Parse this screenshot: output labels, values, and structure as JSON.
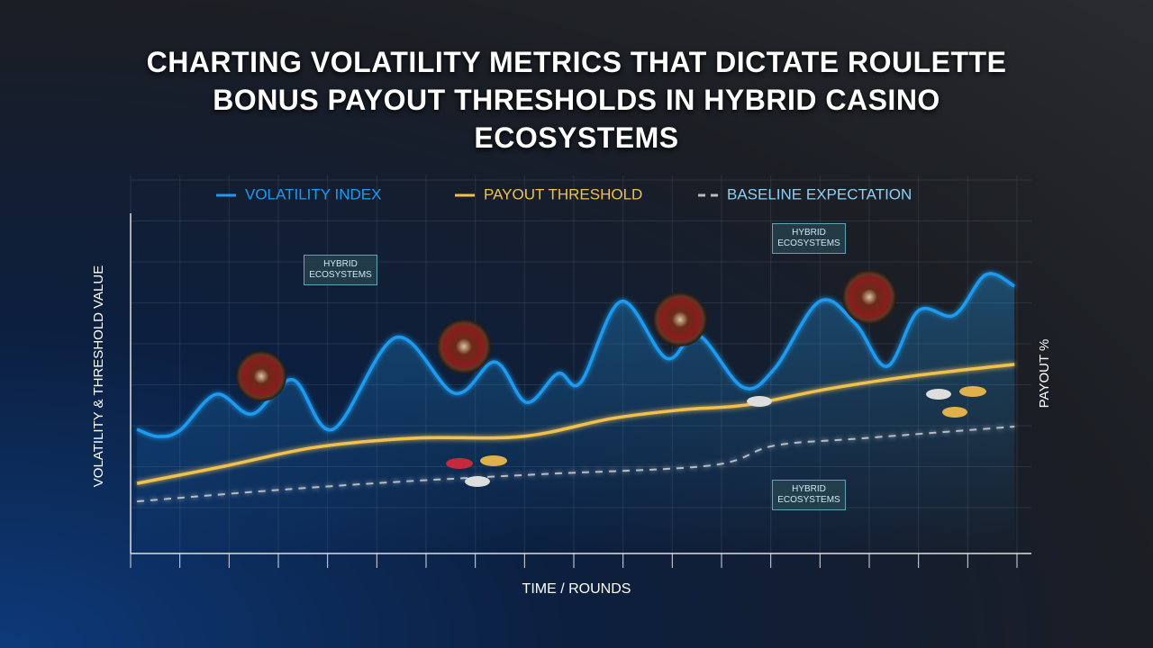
{
  "chart_data": {
    "type": "line",
    "title": "CHARTING VOLATILITY METRICS THAT DICTATE ROULETTE BONUS PAYOUT THRESHOLDS IN HYBRID CASINO ECOSYSTEMS",
    "x_label": "TIME / ROUNDS",
    "y_label": "VOLATILITY & THRESHOLD VALUE",
    "y2_label": "PAYOUT %",
    "xlim": [
      0,
      18
    ],
    "ylim": [
      0,
      100
    ],
    "series": [
      {
        "name": "VOLATILITY INDEX",
        "color": "#1e9bf0",
        "style": "solid",
        "x": [
          0.13,
          0.55,
          1.0,
          1.74,
          2.47,
          3.29,
          4.11,
          5.39,
          6.58,
          7.4,
          8.04,
          8.68,
          9.14,
          9.96,
          10.88,
          11.52,
          12.43,
          13.07,
          13.99,
          14.72,
          15.36,
          16.0,
          16.73,
          17.37,
          17.95
        ],
        "values": [
          36.5,
          34.4,
          36.2,
          46.8,
          41.0,
          51.1,
          36.5,
          63.5,
          47.1,
          56.3,
          44.4,
          52.9,
          50.3,
          74.1,
          57.4,
          64.3,
          48.9,
          54.2,
          74.1,
          67.5,
          55.0,
          71.4,
          70.1,
          82.0,
          78.6
        ]
      },
      {
        "name": "PAYOUT THRESHOLD",
        "color": "#f2c14e",
        "style": "solid",
        "x": [
          0.13,
          1.92,
          3.75,
          5.76,
          7.95,
          9.78,
          11.24,
          12.52,
          14.17,
          16.0,
          17.95
        ],
        "values": [
          20.6,
          25.7,
          31.2,
          33.9,
          34.4,
          39.7,
          42.3,
          43.7,
          48.4,
          52.4,
          55.6
        ]
      },
      {
        "name": "BASELINE EXPECTATION",
        "color": "#b8bcc4",
        "style": "dashed",
        "x": [
          0.13,
          2.83,
          5.58,
          8.32,
          11.79,
          13.07,
          14.9,
          17.95
        ],
        "values": [
          15.3,
          18.5,
          21.2,
          23.3,
          25.9,
          31.7,
          33.9,
          37.3
        ]
      }
    ],
    "annotations": [
      "HYBRID ECOSYSTEMS",
      "HYBRID ECOSYSTEMS",
      "HYBRID ECOSYSTEMS"
    ]
  }
}
